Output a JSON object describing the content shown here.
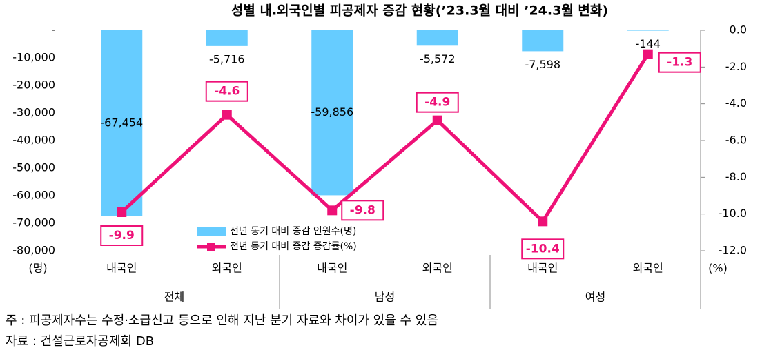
{
  "chart_data": {
    "type": "bar_line",
    "title": "성별 내.외국인별 피공제자 증감 현황(’23.3월 대비 ’24.3월 변화)",
    "categories": [
      "내국인",
      "외국인",
      "내국인",
      "외국인",
      "내국인",
      "외국인"
    ],
    "groups": [
      "전체",
      "남성",
      "여성"
    ],
    "series": [
      {
        "name": "전년 동기 대비 증감 인원수(명)",
        "color": "#66ccff",
        "kind": "bar",
        "values": [
          -67454,
          -5716,
          -59856,
          -5572,
          -7598,
          -144
        ],
        "value_labels": [
          "-67,454",
          "-5,716",
          "-59,856",
          "-5,572",
          "-7,598",
          "-144"
        ]
      },
      {
        "name": "전년 동기 대비 증감 증감률(%)",
        "color": "#ee1177",
        "kind": "line",
        "axis": "y2",
        "values": [
          -9.9,
          -4.6,
          -9.8,
          -4.9,
          -10.4,
          -1.3
        ]
      }
    ],
    "ylabel": "(명)",
    "y2label": "(%)",
    "ylim": [
      -80000,
      0
    ],
    "yticks": [
      {
        "value": 0,
        "label": "-"
      },
      {
        "value": -10000,
        "label": "-10,000"
      },
      {
        "value": -20000,
        "label": "-20,000"
      },
      {
        "value": -30000,
        "label": "-30,000"
      },
      {
        "value": -40000,
        "label": "-40,000"
      },
      {
        "value": -50000,
        "label": "-50,000"
      },
      {
        "value": -60000,
        "label": "-60,000"
      },
      {
        "value": -70000,
        "label": "-70,000"
      },
      {
        "value": -80000,
        "label": "-80,000"
      }
    ],
    "y2lim": [
      -12,
      0
    ],
    "y2ticks": [
      {
        "value": 0,
        "label": "0.0"
      },
      {
        "value": -2,
        "label": "-2.0"
      },
      {
        "value": -4,
        "label": "-4.0"
      },
      {
        "value": -6,
        "label": "-6.0"
      },
      {
        "value": -8,
        "label": "-8.0"
      },
      {
        "value": -10,
        "label": "-10.0"
      },
      {
        "value": -12,
        "label": "-12.0"
      }
    ],
    "grid": false
  },
  "notes": [
    " 주 : 피공제자수는 수정·소급신고 등으로 인해 지난 분기 자료와 차이가 있을 수 있음",
    "자료 : 건설근로자공제회 DB"
  ]
}
